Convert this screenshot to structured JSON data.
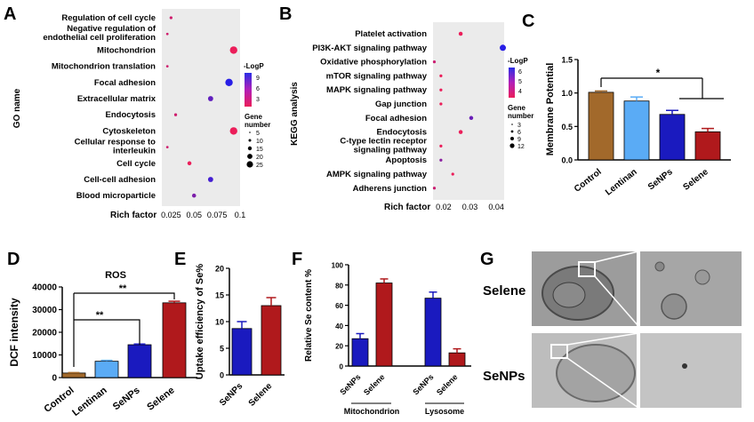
{
  "panels": {
    "A": "A",
    "B": "B",
    "C": "C",
    "D": "D",
    "E": "E",
    "F": "F",
    "G": "G"
  },
  "panelA": {
    "ylabel": "GO name",
    "xlabel": "Rich factor",
    "xticks": [
      "0.025",
      "0.05",
      "0.075",
      "0.1"
    ],
    "terms": [
      {
        "name": "Regulation of cell cycle",
        "x": 0.025,
        "logp": 3,
        "size": 5
      },
      {
        "name": "Negative regulation of",
        "name2": "endothelial cell proliferation",
        "x": 0.021,
        "logp": 3,
        "size": 3
      },
      {
        "name": "Mitochondrion",
        "x": 0.093,
        "logp": 2,
        "size": 25
      },
      {
        "name": "Mitochondrion translation",
        "x": 0.021,
        "logp": 3,
        "size": 3
      },
      {
        "name": "Focal adhesion",
        "x": 0.088,
        "logp": 9,
        "size": 25
      },
      {
        "name": "Extracellular matrix",
        "x": 0.068,
        "logp": 7,
        "size": 15
      },
      {
        "name": "Endocytosis",
        "x": 0.03,
        "logp": 3,
        "size": 5
      },
      {
        "name": "Cytoskeleton",
        "x": 0.093,
        "logp": 2,
        "size": 25
      },
      {
        "name": "Cellular response to",
        "name2": "interleukin",
        "x": 0.021,
        "logp": 3,
        "size": 3
      },
      {
        "name": "Cell cycle",
        "x": 0.045,
        "logp": 2,
        "size": 10
      },
      {
        "name": "Cell-cell adhesion",
        "x": 0.068,
        "logp": 8,
        "size": 15
      },
      {
        "name": "Blood microparticle",
        "x": 0.05,
        "logp": 6,
        "size": 10
      }
    ],
    "legend_color_title": "-LogP",
    "legend_color_ticks": [
      "9",
      "6",
      "3"
    ],
    "legend_size_title": "Gene",
    "legend_size_title2": "number",
    "legend_size_values": [
      "5",
      "10",
      "15",
      "20",
      "25"
    ]
  },
  "panelB": {
    "ylabel": "KEGG analysis",
    "xlabel": "Rich factor",
    "xticks": [
      "0.02",
      "0.03",
      "0.04"
    ],
    "terms": [
      {
        "name": "Platelet activation",
        "x": 0.0265,
        "logp": 2,
        "size": 6
      },
      {
        "name": "PI3K-AKT signaling pathway",
        "x": 0.0425,
        "logp": 8,
        "size": 12
      },
      {
        "name": "Oxidative phosphorylation",
        "x": 0.0165,
        "logp": 3,
        "size": 3
      },
      {
        "name": "mTOR signaling pathway",
        "x": 0.019,
        "logp": 2,
        "size": 3
      },
      {
        "name": "MAPK signaling pathway",
        "x": 0.019,
        "logp": 2,
        "size": 3
      },
      {
        "name": "Gap junction",
        "x": 0.019,
        "logp": 2,
        "size": 3
      },
      {
        "name": "Focal adhesion",
        "x": 0.0305,
        "logp": 6,
        "size": 6
      },
      {
        "name": "Endocytosis",
        "x": 0.0265,
        "logp": 2,
        "size": 6
      },
      {
        "name": "C-type lectin receptor",
        "name2": "signaling pathway",
        "x": 0.019,
        "logp": 2,
        "size": 3
      },
      {
        "name": "Apoptosis",
        "x": 0.019,
        "logp": 5,
        "size": 3
      },
      {
        "name": "AMPK signaling pathway",
        "x": 0.0235,
        "logp": 2,
        "size": 3
      },
      {
        "name": "Adherens junction",
        "x": 0.0165,
        "logp": 3,
        "size": 3
      }
    ],
    "legend_color_title": "-LogP",
    "legend_color_ticks": [
      "6",
      "5",
      "4"
    ],
    "legend_size_title": "Gene",
    "legend_size_title2": "number",
    "legend_size_values": [
      "3",
      "6",
      "9",
      "12"
    ]
  },
  "chart_data": [
    {
      "type": "bar",
      "panel": "C",
      "ylabel": "Membrane Potential",
      "categories": [
        "Control",
        "Lentinan",
        "SeNPs",
        "Selene"
      ],
      "values": [
        1.01,
        0.88,
        0.68,
        0.42
      ],
      "errors": [
        0.02,
        0.06,
        0.06,
        0.05
      ],
      "colors": [
        "#a2692b",
        "#5aabf5",
        "#1a1abf",
        "#b0191c"
      ],
      "ylim": [
        0,
        1.5
      ],
      "yticks": [
        "0.0",
        "0.5",
        "1.0",
        "1.5"
      ],
      "sig": "*"
    },
    {
      "type": "bar",
      "panel": "D",
      "title": "ROS",
      "ylabel": "DCF intensity",
      "categories": [
        "Control",
        "Lentinan",
        "SeNPs",
        "Selene"
      ],
      "values": [
        2000,
        7200,
        14500,
        33000
      ],
      "errors": [
        200,
        400,
        300,
        700
      ],
      "colors": [
        "#a2692b",
        "#5aabf5",
        "#1a1abf",
        "#b0191c"
      ],
      "ylim": [
        0,
        40000
      ],
      "yticks": [
        "0",
        "10000",
        "20000",
        "30000",
        "40000"
      ],
      "sig1": "**",
      "sig2": "**"
    },
    {
      "type": "bar",
      "panel": "E",
      "ylabel": "Uptake efficiency of Se%",
      "categories": [
        "SeNPs",
        "Selene"
      ],
      "values": [
        8.7,
        13
      ],
      "errors": [
        1.3,
        1.5
      ],
      "colors": [
        "#1a1abf",
        "#b0191c"
      ],
      "ylim": [
        0,
        20
      ],
      "yticks": [
        "0",
        "5",
        "10",
        "15",
        "20"
      ]
    },
    {
      "type": "bar",
      "panel": "F",
      "ylabel": "Relative Se content %",
      "groups": [
        "Mitochondrion",
        "Lysosome"
      ],
      "categories": [
        "SeNPs",
        "Selene",
        "SeNPs",
        "Selene"
      ],
      "values": [
        27,
        82,
        67,
        13
      ],
      "errors": [
        5,
        4,
        6,
        4
      ],
      "colors": [
        "#1a1abf",
        "#b0191c",
        "#1a1abf",
        "#b0191c"
      ],
      "ylim": [
        0,
        100
      ],
      "yticks": [
        "0",
        "20",
        "40",
        "60",
        "80",
        "100"
      ]
    }
  ],
  "panelG": {
    "row1": "Selene",
    "row2": "SeNPs"
  }
}
